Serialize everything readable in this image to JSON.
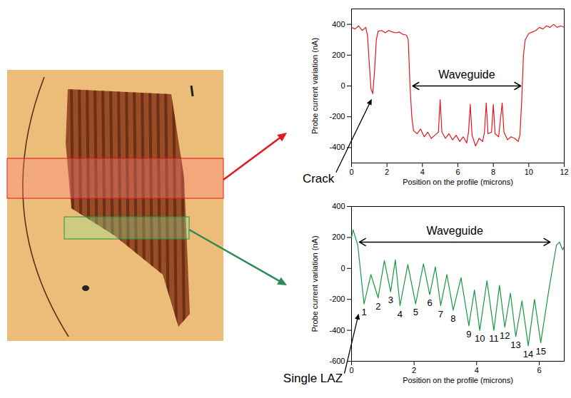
{
  "chart_data": [
    {
      "type": "line",
      "xlabel": "Position on the profile (microns)",
      "ylabel": "Probe current variation (nA)",
      "color": "#e3171d",
      "xlim": [
        0,
        12
      ],
      "ylim": [
        -500,
        500
      ],
      "xticks": [
        0,
        2,
        4,
        6,
        8,
        10,
        12
      ],
      "yticks": [
        -400,
        -200,
        0,
        200,
        400
      ],
      "x": [
        0,
        0.2,
        0.4,
        0.6,
        0.8,
        0.9,
        1,
        1.1,
        1.2,
        1.3,
        1.4,
        1.5,
        1.7,
        1.9,
        2.1,
        2.3,
        2.5,
        2.7,
        2.9,
        3.1,
        3.2,
        3.3,
        3.4,
        3.5,
        3.7,
        3.9,
        4.1,
        4.3,
        4.5,
        4.7,
        4.9,
        5,
        5.1,
        5.3,
        5.5,
        5.7,
        5.9,
        6.1,
        6.3,
        6.5,
        6.6,
        6.7,
        6.8,
        7,
        7.2,
        7.4,
        7.5,
        7.6,
        7.7,
        7.9,
        8,
        8.1,
        8.3,
        8.5,
        8.6,
        8.8,
        9,
        9.2,
        9.4,
        9.5,
        9.6,
        9.7,
        9.8,
        10,
        10.2,
        10.4,
        10.6,
        10.8,
        11,
        11.2,
        11.4,
        11.6,
        11.8,
        12
      ],
      "values": [
        380,
        370,
        390,
        360,
        380,
        330,
        150,
        -20,
        -50,
        100,
        300,
        355,
        360,
        345,
        360,
        350,
        345,
        350,
        335,
        330,
        300,
        0,
        -200,
        -290,
        -310,
        -280,
        -330,
        -300,
        -340,
        -320,
        -300,
        -90,
        -300,
        -340,
        -310,
        -350,
        -320,
        -360,
        -330,
        -370,
        -300,
        -120,
        -320,
        -390,
        -340,
        -360,
        -300,
        -110,
        -310,
        -300,
        -120,
        -310,
        -330,
        -110,
        -300,
        -350,
        -330,
        -340,
        -360,
        -320,
        -100,
        200,
        300,
        340,
        350,
        360,
        380,
        370,
        390,
        380,
        400,
        380,
        390,
        380
      ],
      "annotations": [
        {
          "text": "Crack",
          "x": 1.2,
          "y": -50
        },
        {
          "text": "Waveguide",
          "x1": 3.45,
          "x2": 9.55,
          "y": 0
        }
      ]
    },
    {
      "type": "line",
      "xlabel": "Position on the profile (microns)",
      "ylabel": "Probe current variation (nA)",
      "color": "#169942",
      "xlim": [
        0,
        6.8
      ],
      "ylim": [
        -600,
        400
      ],
      "xticks": [
        0,
        2,
        4,
        6
      ],
      "yticks": [
        -600,
        -400,
        -200,
        0,
        200,
        400
      ],
      "x": [
        0,
        0.05,
        0.2,
        0.4,
        0.62,
        0.85,
        1.05,
        1.25,
        1.4,
        1.55,
        1.8,
        2.05,
        2.3,
        2.5,
        2.68,
        2.85,
        3.05,
        3.25,
        3.5,
        3.75,
        3.93,
        4.1,
        4.33,
        4.55,
        4.73,
        4.9,
        5.08,
        5.25,
        5.45,
        5.65,
        5.85,
        6.05,
        6.3,
        6.55,
        6.65,
        6.75,
        6.8
      ],
      "values": [
        200,
        250,
        150,
        -230,
        -40,
        -190,
        50,
        -150,
        55,
        -240,
        25,
        -230,
        30,
        -170,
        10,
        -240,
        -40,
        -270,
        -60,
        -370,
        -140,
        -400,
        -80,
        -400,
        -110,
        -380,
        -160,
        -440,
        -210,
        -500,
        -200,
        -480,
        -150,
        150,
        170,
        120,
        140
      ],
      "annotations": [
        {
          "text": "Single LAZ",
          "x": 0.4,
          "y": -230
        },
        {
          "text": "Waveguide",
          "x1": 0.25,
          "x2": 6.35,
          "y": 170
        }
      ],
      "point_labels": [
        {
          "text": "1",
          "x": 0.4,
          "y": -230
        },
        {
          "text": "2",
          "x": 0.85,
          "y": -190
        },
        {
          "text": "3",
          "x": 1.25,
          "y": -150
        },
        {
          "text": "4",
          "x": 1.55,
          "y": -240
        },
        {
          "text": "5",
          "x": 2.05,
          "y": -230
        },
        {
          "text": "6",
          "x": 2.5,
          "y": -170
        },
        {
          "text": "7",
          "x": 2.85,
          "y": -240
        },
        {
          "text": "8",
          "x": 3.25,
          "y": -270
        },
        {
          "text": "9",
          "x": 3.75,
          "y": -370
        },
        {
          "text": "10",
          "x": 4.1,
          "y": -400
        },
        {
          "text": "11",
          "x": 4.55,
          "y": -400
        },
        {
          "text": "12",
          "x": 4.9,
          "y": -380
        },
        {
          "text": "13",
          "x": 5.25,
          "y": -440
        },
        {
          "text": "14",
          "x": 5.65,
          "y": -500
        },
        {
          "text": "15",
          "x": 6.05,
          "y": -480
        }
      ]
    }
  ]
}
